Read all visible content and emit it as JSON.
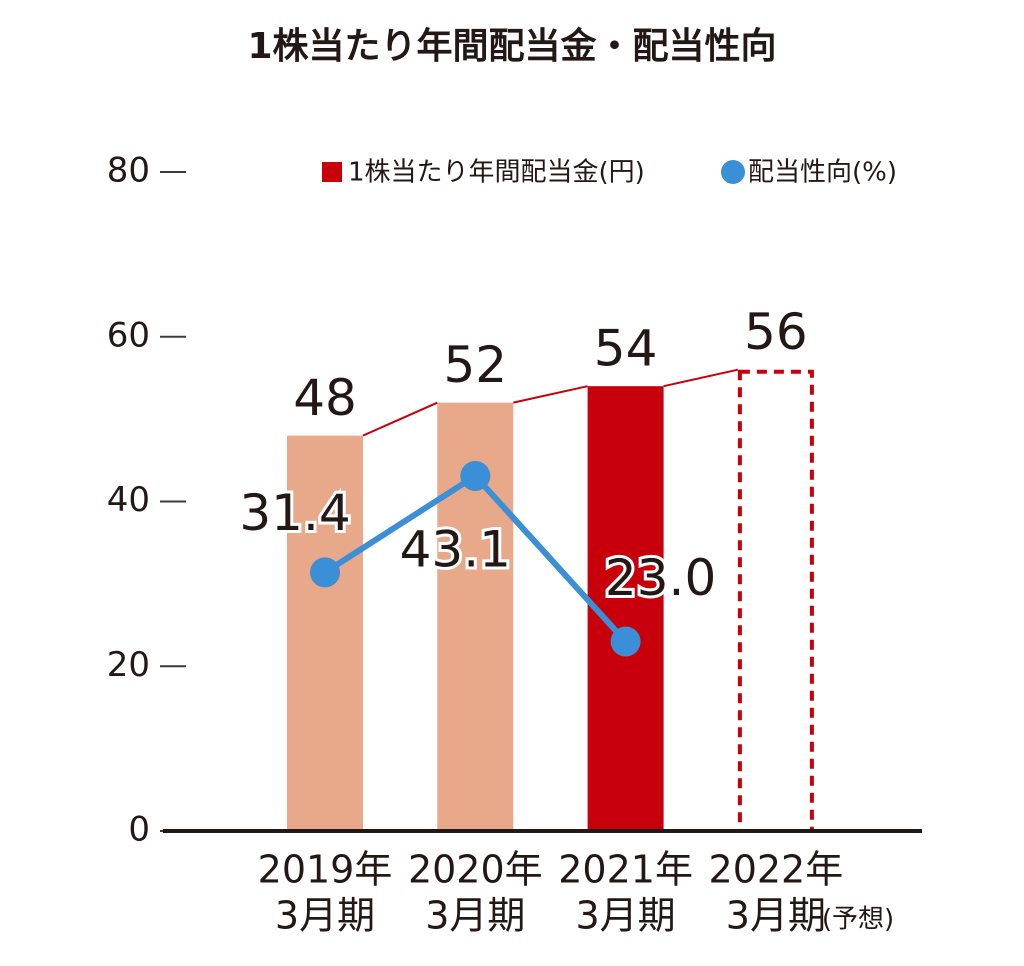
{
  "chart_data": {
    "type": "bar_line",
    "title": "1株当たり年間配当金・配当性向",
    "categories": [
      [
        "2019年",
        "3月期"
      ],
      [
        "2020年",
        "3月期"
      ],
      [
        "2021年",
        "3月期"
      ],
      [
        "2022年",
        "3月期",
        "(予想)"
      ]
    ],
    "ylim": [
      0,
      80
    ],
    "yticks": [
      0,
      20,
      40,
      60,
      80
    ],
    "series": [
      {
        "name": "1株当たり年間配当金(円)",
        "type": "bar",
        "color": "#c8000b",
        "values": [
          48,
          52,
          54,
          56
        ],
        "bar_colors": [
          "#e8a88a",
          "#e8a88a",
          "#c8000b",
          "#c8000b"
        ],
        "bar_styles": [
          "solid",
          "solid",
          "solid",
          "dashed"
        ],
        "value_label_colors": [
          "#231815",
          "#231815",
          "#c8000b",
          "#231815"
        ]
      },
      {
        "name": "配当性向(%)",
        "type": "line",
        "color": "#3a8fd6",
        "values": [
          31.4,
          43.1,
          23.0,
          null
        ],
        "value_labels": [
          "31.4",
          "43.1",
          "23.0",
          null
        ]
      }
    ]
  }
}
